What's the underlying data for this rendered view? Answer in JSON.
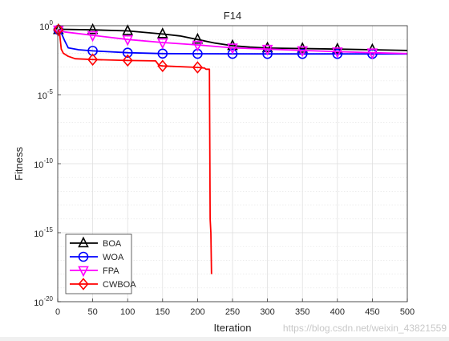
{
  "chart_data": {
    "type": "line",
    "title": "F14",
    "xlabel": "Iteration",
    "ylabel": "Fitness",
    "xlim": [
      0,
      500
    ],
    "ylim": [
      1e-20,
      1
    ],
    "yscale": "log",
    "grid": true,
    "legend_position": "bottom-left",
    "x_ticks": [
      "0",
      "50",
      "100",
      "150",
      "200",
      "250",
      "300",
      "350",
      "400",
      "450",
      "500"
    ],
    "y_ticks": [
      {
        "base": "10",
        "exp": "0"
      },
      {
        "base": "10",
        "exp": "-5"
      },
      {
        "base": "10",
        "exp": "-10"
      },
      {
        "base": "10",
        "exp": "-15"
      },
      {
        "base": "10",
        "exp": "-20"
      }
    ],
    "series": [
      {
        "name": "BOA",
        "color": "#000000",
        "marker": "triangle-up",
        "points": [
          [
            1,
            0.5
          ],
          [
            5,
            0.55
          ],
          [
            50,
            0.5
          ],
          [
            100,
            0.42
          ],
          [
            150,
            0.25
          ],
          [
            175,
            0.18
          ],
          [
            200,
            0.1
          ],
          [
            225,
            0.055
          ],
          [
            250,
            0.035
          ],
          [
            275,
            0.028
          ],
          [
            300,
            0.024
          ],
          [
            350,
            0.022
          ],
          [
            400,
            0.02
          ],
          [
            450,
            0.018
          ],
          [
            500,
            0.016
          ]
        ],
        "marker_x": [
          1,
          50,
          100,
          150,
          200,
          250,
          300,
          350,
          400,
          450
        ]
      },
      {
        "name": "WOA",
        "color": "#0000ff",
        "marker": "circle",
        "points": [
          [
            1,
            0.5
          ],
          [
            5,
            0.3
          ],
          [
            10,
            0.08
          ],
          [
            15,
            0.025
          ],
          [
            30,
            0.018
          ],
          [
            50,
            0.015
          ],
          [
            100,
            0.011
          ],
          [
            150,
            0.0095
          ],
          [
            200,
            0.0092
          ],
          [
            300,
            0.009
          ],
          [
            400,
            0.009
          ],
          [
            500,
            0.009
          ]
        ],
        "marker_x": [
          1,
          50,
          100,
          150,
          200,
          250,
          300,
          350,
          400,
          450
        ]
      },
      {
        "name": "FPA",
        "color": "#ff00ff",
        "marker": "triangle-down",
        "points": [
          [
            1,
            0.5
          ],
          [
            10,
            0.35
          ],
          [
            50,
            0.2
          ],
          [
            100,
            0.1
          ],
          [
            150,
            0.06
          ],
          [
            200,
            0.04
          ],
          [
            250,
            0.025
          ],
          [
            300,
            0.02
          ],
          [
            350,
            0.016
          ],
          [
            400,
            0.013
          ],
          [
            450,
            0.011
          ],
          [
            500,
            0.0095
          ]
        ],
        "marker_x": [
          1,
          50,
          100,
          150,
          200,
          250,
          300,
          350,
          400,
          450
        ]
      },
      {
        "name": "CWBOA",
        "color": "#ff0000",
        "marker": "diamond",
        "points": [
          [
            1,
            0.5
          ],
          [
            3,
            0.2
          ],
          [
            5,
            0.02
          ],
          [
            8,
            0.01
          ],
          [
            15,
            0.006
          ],
          [
            25,
            0.004
          ],
          [
            50,
            0.0035
          ],
          [
            100,
            0.003
          ],
          [
            140,
            0.0028
          ],
          [
            145,
            0.0013
          ],
          [
            150,
            0.0012
          ],
          [
            200,
            0.00095
          ],
          [
            210,
            0.00085
          ],
          [
            212,
            0.0007
          ],
          [
            217,
            0.0007
          ],
          [
            217.5,
            1e-09
          ],
          [
            218,
            1e-14
          ],
          [
            219,
            1e-15
          ],
          [
            220,
            1e-18
          ]
        ],
        "marker_x": [
          1,
          50,
          100,
          150,
          200
        ]
      }
    ]
  },
  "watermark": "https://blog.csdn.net/weixin_43821559"
}
